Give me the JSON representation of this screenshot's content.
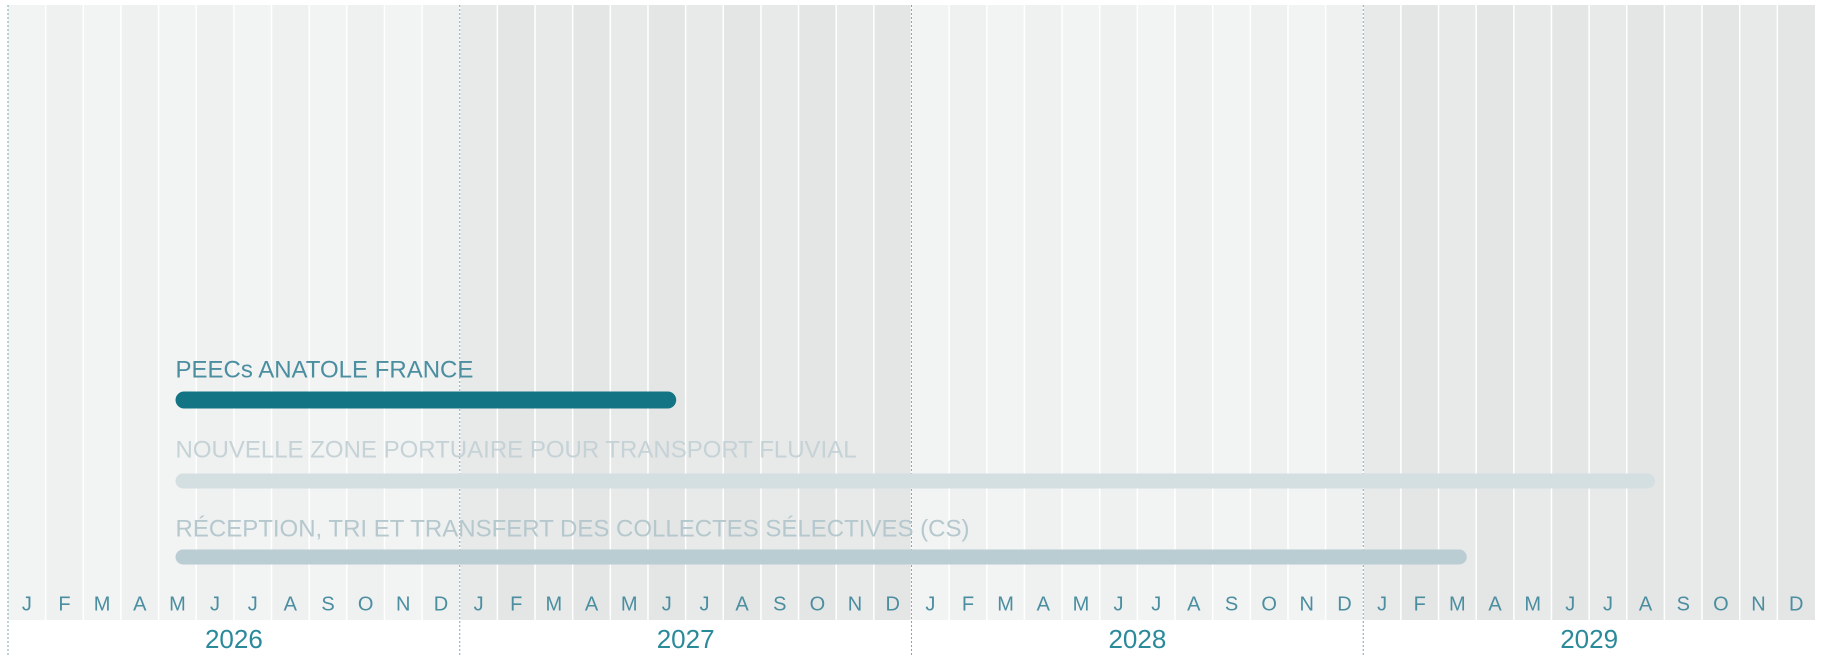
{
  "timeline": {
    "years": [
      "2026",
      "2027",
      "2028",
      "2029"
    ],
    "months": [
      "J",
      "F",
      "M",
      "A",
      "M",
      "J",
      "J",
      "A",
      "S",
      "O",
      "N",
      "D"
    ],
    "tasks": [
      {
        "label": "PEECs ANATOLE FRANCE",
        "start": "2026-05",
        "end": "2027-06",
        "color": "#137584",
        "text_color": "#4a8ea0"
      },
      {
        "label": "NOUVELLE ZONE PORTUAIRE POUR TRANSPORT FLUVIAL",
        "start": "2026-05",
        "end": "2029-08",
        "color": "#d4dfe2",
        "text_color": "#c5d2d6"
      },
      {
        "label": "RÉCEPTION, TRI ET TRANSFERT DES COLLECTES SÉLECTIVES (CS)",
        "start": "2026-05",
        "end": "2029-03",
        "color": "#b9cdd3",
        "text_color": "#b5c8cd"
      }
    ]
  }
}
